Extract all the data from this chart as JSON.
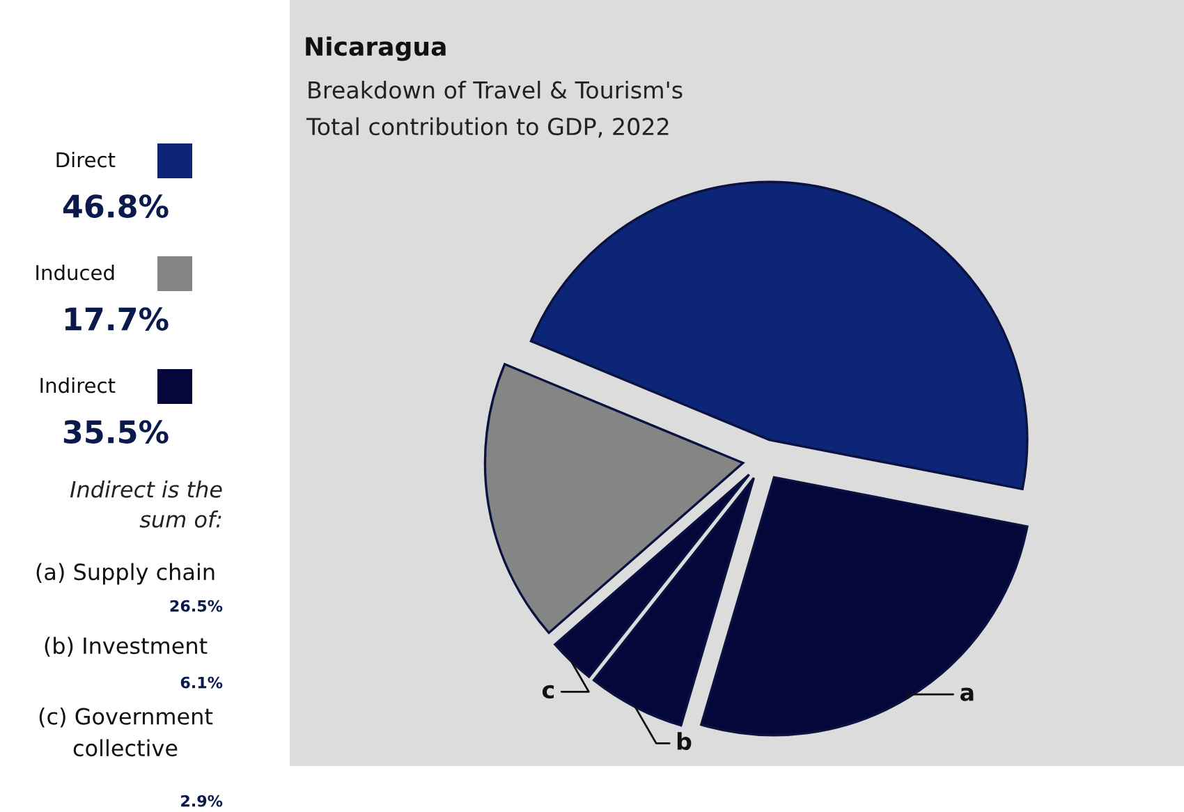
{
  "chart_data": {
    "type": "pie",
    "title": "Nicaragua",
    "subtitle": "Breakdown of Travel & Tourism's\nTotal contribution to GDP, 2022",
    "categories": [
      "Direct",
      "Induced",
      "c",
      "b",
      "a"
    ],
    "values": [
      46.8,
      17.7,
      2.9,
      6.1,
      26.5
    ],
    "colors": [
      "#0c2577",
      "#858585",
      "#05073a",
      "#05073a",
      "#05073a"
    ],
    "annotations": [
      "46.8%",
      "17.7%",
      "Indirect",
      "35.5%",
      "Indirect is the\nsum of:",
      "(a) Supply chain",
      "26.5%",
      "(b) Investment",
      "6.1%",
      "(c) Government\ncollective",
      "2.9%"
    ],
    "legend": "left"
  }
}
